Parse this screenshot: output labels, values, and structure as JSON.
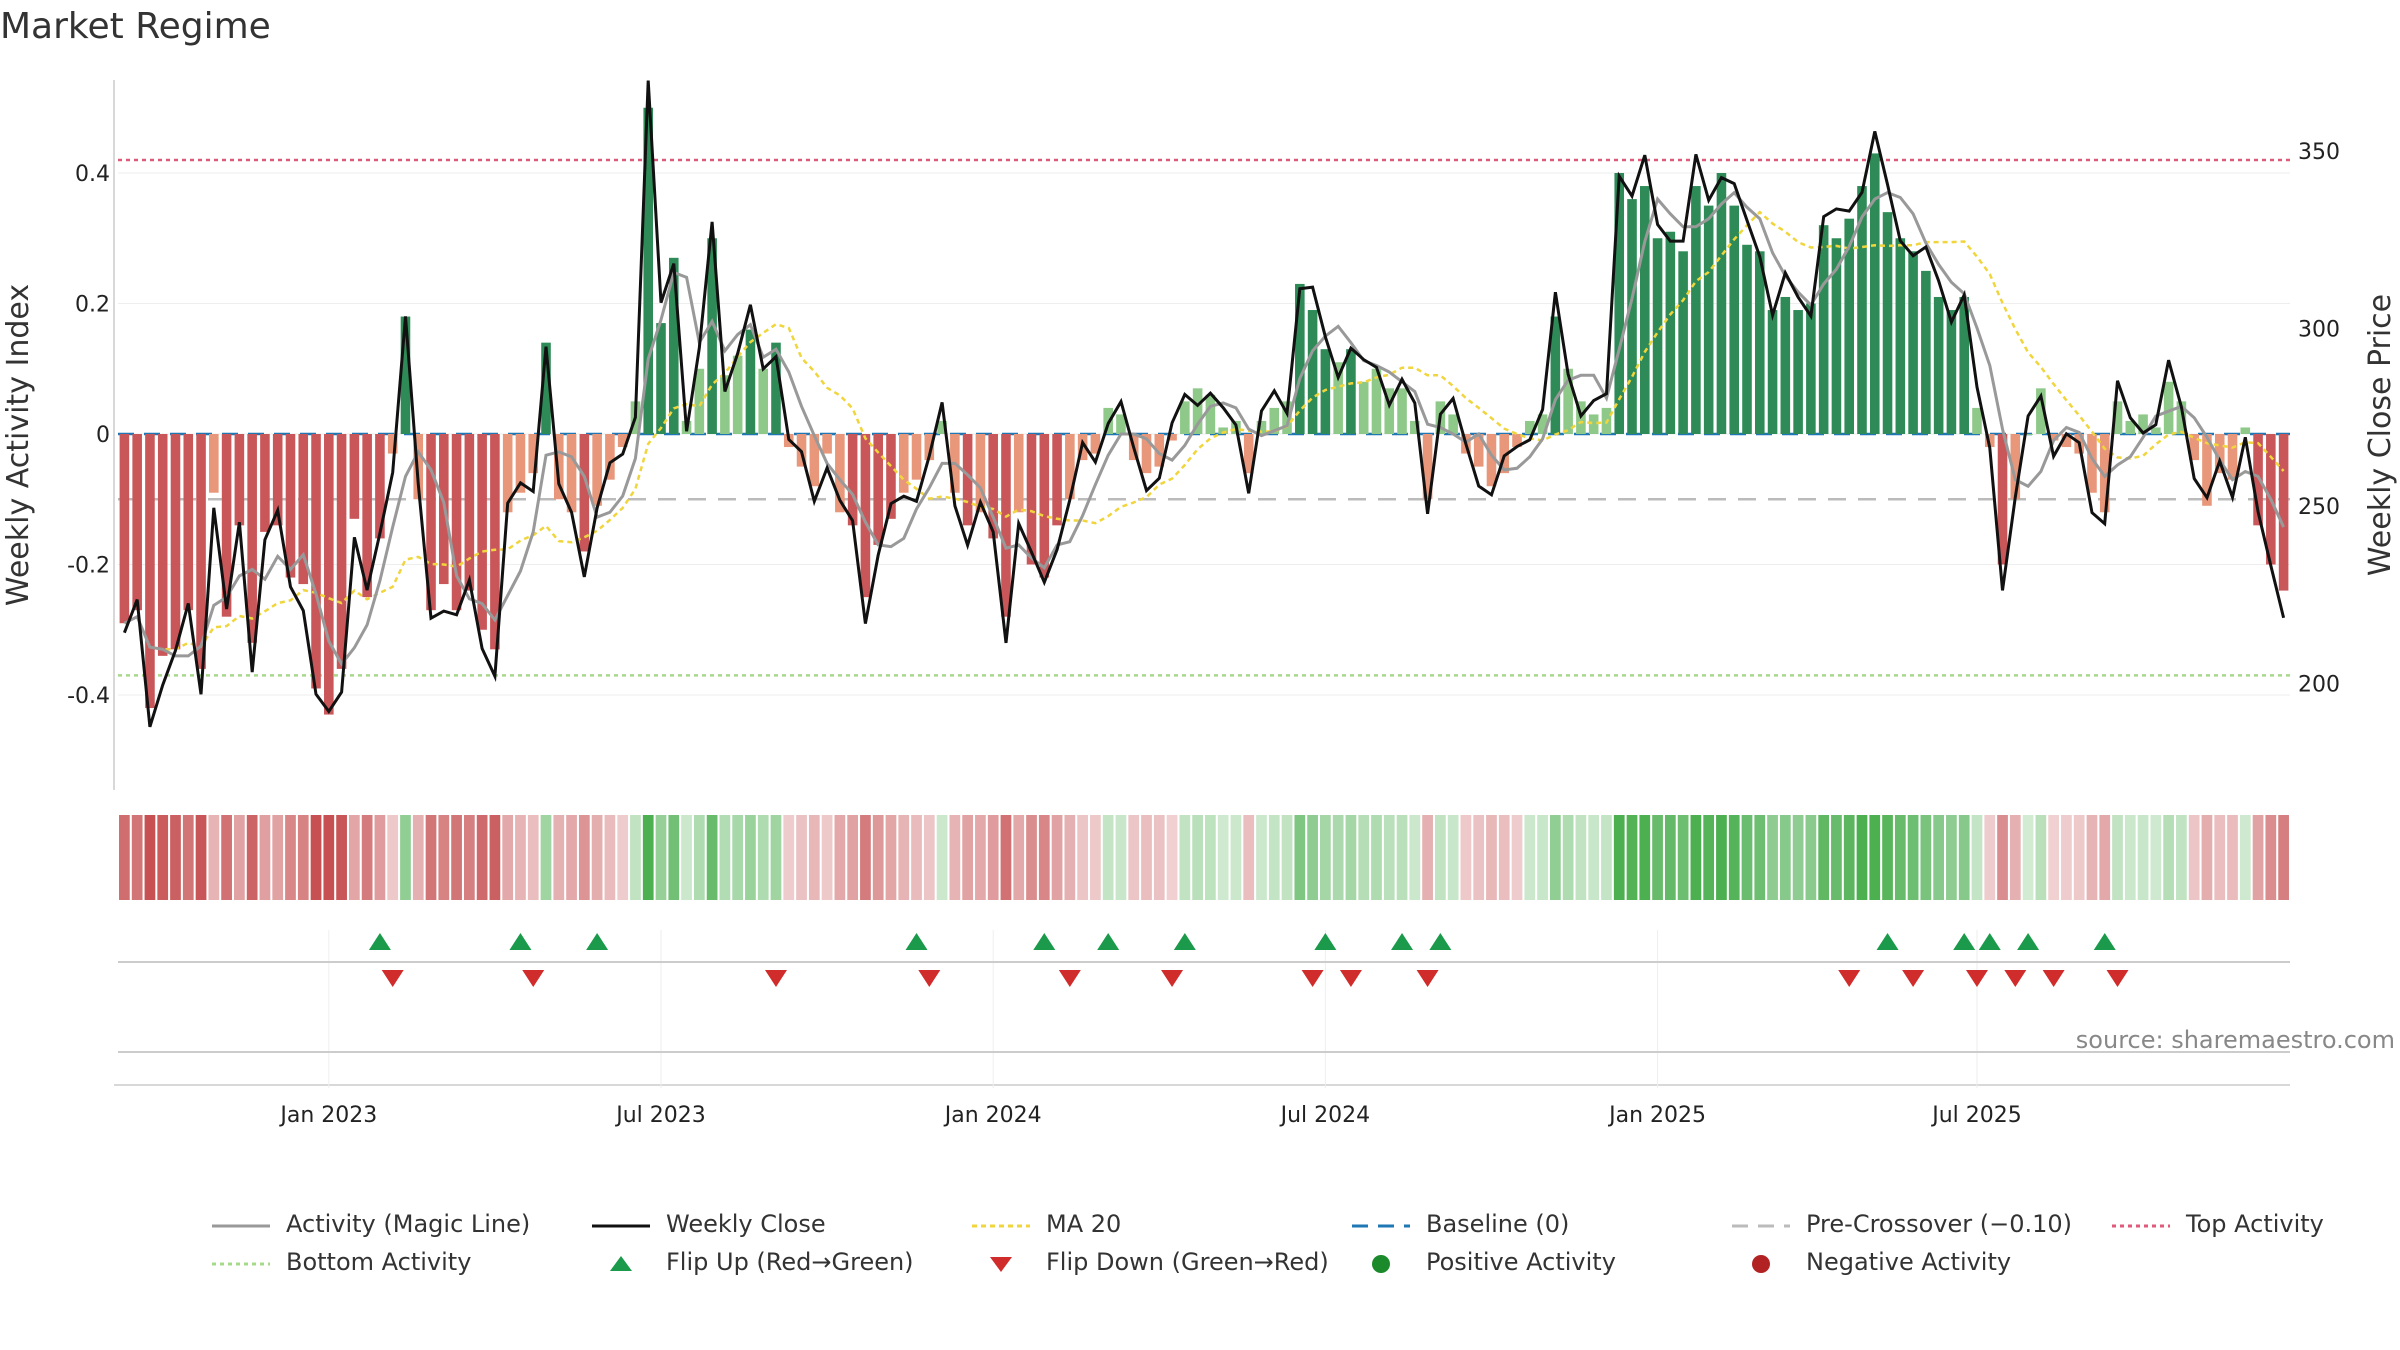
{
  "title": "Market Regime",
  "source_text": "source: sharemaestro.com",
  "colors": {
    "green_dark": "#2e8b57",
    "green_light": "#8fc98a",
    "red_dark": "#c9575a",
    "red_light": "#e8977a",
    "magic_line": "#999999",
    "close_line": "#111111",
    "ma20": "#f0d53c",
    "baseline": "#1f77b4",
    "pre_crossover": "#bbbbbb",
    "top_activity": "#e05a7a",
    "bottom_activity": "#a8d88a",
    "flip_up": "#1a9a4a",
    "flip_down": "#d12c2c",
    "positive": "#1a8a2a",
    "negative": "#b22222"
  },
  "legend": [
    {
      "key": "magic",
      "label": "Activity (Magic Line)"
    },
    {
      "key": "close",
      "label": "Weekly Close"
    },
    {
      "key": "ma20",
      "label": "MA 20"
    },
    {
      "key": "baseline",
      "label": "Baseline (0)"
    },
    {
      "key": "pre",
      "label": "Pre-Crossover (−0.10)"
    },
    {
      "key": "top",
      "label": "Top Activity"
    },
    {
      "key": "bottom",
      "label": "Bottom Activity"
    },
    {
      "key": "flipup",
      "label": "Flip Up (Red→Green)"
    },
    {
      "key": "flipdown",
      "label": "Flip Down (Green→Red)"
    },
    {
      "key": "pos",
      "label": "Positive Activity"
    },
    {
      "key": "neg",
      "label": "Negative Activity"
    }
  ],
  "chart_data": {
    "type": "bar",
    "xlabel": "",
    "ylabel_left": "Weekly Activity Index",
    "ylabel_right": "Weekly Close Price",
    "x_tick_labels": [
      "Jan 2023",
      "Jul 2023",
      "Jan 2024",
      "Jul 2024",
      "Jan 2025",
      "Jul 2025"
    ],
    "y_left_ticks": [
      "-0.4",
      "-0.2",
      "0",
      "0.2",
      "0.4"
    ],
    "y_left_range": [
      -0.54,
      0.54
    ],
    "y_right_ticks": [
      "200",
      "250",
      "300",
      "350"
    ],
    "y_right_range": [
      170,
      370
    ],
    "reference_lines": {
      "baseline": 0,
      "pre_crossover": -0.1,
      "top_activity": 0.42,
      "bottom_activity": -0.37
    },
    "activity_index": [
      -0.29,
      -0.27,
      -0.42,
      -0.34,
      -0.33,
      -0.27,
      -0.36,
      -0.09,
      -0.28,
      -0.14,
      -0.32,
      -0.15,
      -0.14,
      -0.22,
      -0.23,
      -0.39,
      -0.43,
      -0.36,
      -0.13,
      -0.25,
      -0.16,
      -0.03,
      0.18,
      -0.1,
      -0.27,
      -0.23,
      -0.27,
      -0.24,
      -0.3,
      -0.33,
      -0.12,
      -0.09,
      -0.06,
      0.14,
      -0.1,
      -0.12,
      -0.18,
      -0.11,
      -0.07,
      -0.02,
      0.05,
      0.5,
      0.17,
      0.27,
      0.02,
      0.1,
      0.3,
      0.09,
      0.12,
      0.16,
      0.1,
      0.14,
      -0.02,
      -0.05,
      -0.08,
      -0.03,
      -0.12,
      -0.14,
      -0.25,
      -0.17,
      -0.13,
      -0.09,
      -0.07,
      -0.04,
      0.02,
      -0.09,
      -0.14,
      -0.12,
      -0.16,
      -0.28,
      -0.12,
      -0.2,
      -0.22,
      -0.14,
      -0.1,
      -0.04,
      -0.03,
      0.04,
      0.03,
      -0.04,
      -0.06,
      -0.05,
      -0.01,
      0.05,
      0.07,
      0.06,
      0.01,
      0.02,
      -0.06,
      0.02,
      0.04,
      0.05,
      0.23,
      0.19,
      0.13,
      0.11,
      0.13,
      0.08,
      0.1,
      0.07,
      0.07,
      0.02,
      -0.1,
      0.05,
      0.03,
      -0.03,
      -0.05,
      -0.08,
      -0.06,
      -0.02,
      0.02,
      0.03,
      0.18,
      0.1,
      0.05,
      0.03,
      0.04,
      0.4,
      0.36,
      0.38,
      0.3,
      0.31,
      0.28,
      0.38,
      0.35,
      0.4,
      0.35,
      0.29,
      0.28,
      0.19,
      0.21,
      0.19,
      0.2,
      0.32,
      0.3,
      0.33,
      0.38,
      0.43,
      0.34,
      0.3,
      0.28,
      0.25,
      0.21,
      0.19,
      0.21,
      0.04,
      -0.02,
      -0.2,
      -0.1,
      0.0,
      0.07,
      -0.01,
      -0.02,
      -0.03,
      -0.09,
      -0.12,
      0.05,
      0.02,
      0.03,
      0.01,
      0.08,
      0.05,
      -0.04,
      -0.11,
      -0.06,
      -0.07,
      0.01,
      -0.14,
      -0.2,
      -0.24
    ],
    "flip_up_weeks": [
      20,
      31,
      37,
      62,
      72,
      77,
      83,
      94,
      100,
      103,
      138,
      144,
      146,
      149,
      155
    ],
    "flip_down_weeks": [
      21,
      32,
      51,
      63,
      74,
      82,
      93,
      96,
      102,
      135,
      140,
      145,
      148,
      151,
      156
    ]
  }
}
